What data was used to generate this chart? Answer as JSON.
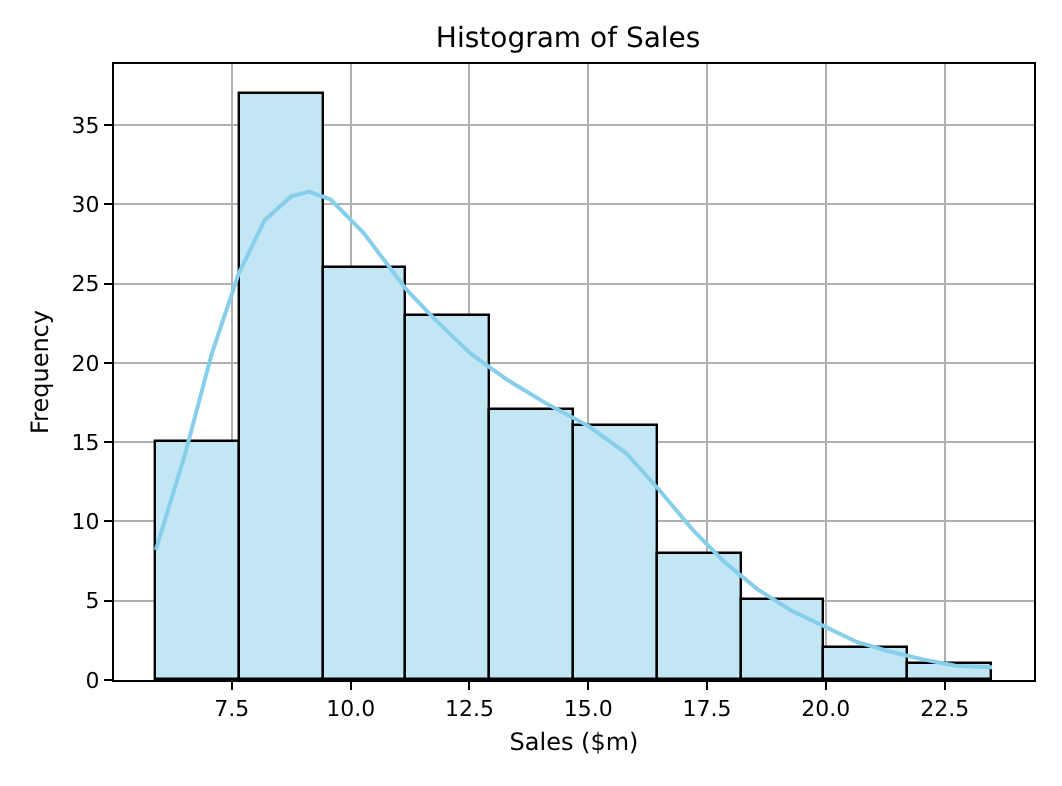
{
  "chart_data": {
    "type": "histogram",
    "title": "Histogram of Sales",
    "xlabel": "Sales ($m)",
    "ylabel": "Frequency",
    "bins": [
      5.9,
      7.66,
      9.42,
      11.18,
      12.94,
      14.7,
      16.46,
      18.22,
      19.98,
      21.74,
      23.5
    ],
    "series": [
      {
        "color": "#c3e6f5",
        "values": [
          15,
          37,
          26,
          23,
          17,
          16,
          8,
          5,
          2,
          1
        ]
      },
      {
        "type": "line",
        "color": "#87ceeb",
        "x": [
          5.9,
          6.52,
          7.08,
          7.64,
          8.19,
          8.75,
          9.13,
          9.58,
          10.27,
          11.18,
          11.79,
          12.52,
          13.31,
          14.14,
          15.01,
          15.8,
          16.49,
          17.19,
          17.88,
          18.57,
          19.26,
          19.96,
          20.65,
          21.34,
          22.04,
          22.73,
          23.5
        ],
        "values": [
          8.2,
          14.3,
          20.6,
          25.6,
          29.0,
          30.5,
          30.8,
          30.3,
          28.2,
          24.6,
          22.7,
          20.6,
          18.9,
          17.4,
          16.0,
          14.3,
          12.0,
          9.5,
          7.4,
          5.7,
          4.4,
          3.4,
          2.4,
          1.8,
          1.3,
          0.9,
          0.8
        ]
      }
    ],
    "xlim": [
      5.02,
      24.38
    ],
    "xticks": [
      {
        "value": 7.5,
        "label": "7.5"
      },
      {
        "value": 10,
        "label": "10.0"
      },
      {
        "value": 12.5,
        "label": "12.5"
      },
      {
        "value": 15,
        "label": "15.0"
      },
      {
        "value": 17.5,
        "label": "17.5"
      },
      {
        "value": 20,
        "label": "20.0"
      },
      {
        "value": 22.5,
        "label": "22.5"
      }
    ],
    "ylim": [
      0,
      38.85
    ],
    "yticks": [
      0,
      5,
      10,
      15,
      20,
      25,
      30,
      35
    ],
    "grid": true,
    "legend": false
  }
}
